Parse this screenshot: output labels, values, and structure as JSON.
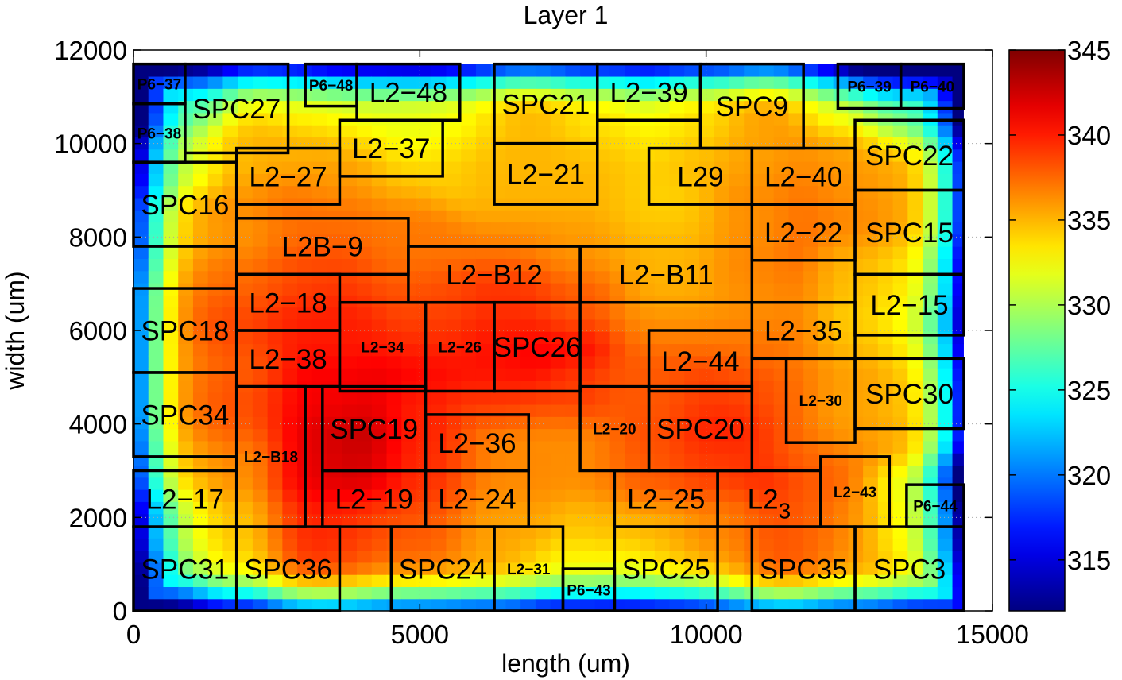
{
  "chart_data": {
    "type": "heatmap",
    "title": "Layer 1",
    "xlabel": "length (um)",
    "ylabel": "width (um)",
    "xlim": [
      0,
      15000
    ],
    "ylim": [
      0,
      12000
    ],
    "x_ticks": [
      {
        "value": 0,
        "label": "0"
      },
      {
        "value": 5000,
        "label": "5000"
      },
      {
        "value": 10000,
        "label": "10000"
      },
      {
        "value": 15000,
        "label": "15000"
      }
    ],
    "y_ticks": [
      {
        "value": 0,
        "label": "0"
      },
      {
        "value": 2000,
        "label": "2000"
      },
      {
        "value": 4000,
        "label": "4000"
      },
      {
        "value": 6000,
        "label": "6000"
      },
      {
        "value": 8000,
        "label": "8000"
      },
      {
        "value": 10000,
        "label": "10000"
      },
      {
        "value": 12000,
        "label": "12000"
      }
    ],
    "die_extent": {
      "x": [
        0,
        14500
      ],
      "y": [
        0,
        11700
      ]
    },
    "colorbar": {
      "range": [
        312,
        345
      ],
      "colormap": "jet",
      "ticks": [
        {
          "value": 315,
          "label": "315"
        },
        {
          "value": 320,
          "label": "320"
        },
        {
          "value": 325,
          "label": "325"
        },
        {
          "value": 330,
          "label": "330"
        },
        {
          "value": 335,
          "label": "335"
        },
        {
          "value": 340,
          "label": "340"
        },
        {
          "value": 345,
          "label": "345"
        }
      ]
    },
    "blocks": [
      {
        "name": "P6−37",
        "x0": 0,
        "y0": 10850,
        "x1": 900,
        "y1": 11700,
        "temp": 322,
        "small": true
      },
      {
        "name": "P6−38",
        "x0": 0,
        "y0": 9600,
        "x1": 900,
        "y1": 10850,
        "temp": 326,
        "small": true
      },
      {
        "name": "SPC27",
        "x0": 900,
        "y0": 9800,
        "x1": 2700,
        "y1": 11700,
        "temp": 333
      },
      {
        "name": "P6−48",
        "x0": 3000,
        "y0": 10800,
        "x1": 3900,
        "y1": 11700,
        "temp": 331,
        "small": true
      },
      {
        "name": "L2−48",
        "x0": 3900,
        "y0": 10500,
        "x1": 5700,
        "y1": 11700,
        "temp": 330
      },
      {
        "name": "SPC21",
        "x0": 6300,
        "y0": 10000,
        "x1": 8100,
        "y1": 11700,
        "temp": 335
      },
      {
        "name": "L2−39",
        "x0": 8100,
        "y0": 10500,
        "x1": 9900,
        "y1": 11700,
        "temp": 331
      },
      {
        "name": "SPC9",
        "x0": 9900,
        "y0": 9900,
        "x1": 11700,
        "y1": 11700,
        "temp": 336
      },
      {
        "name": "P6−39",
        "x0": 12300,
        "y0": 10750,
        "x1": 13400,
        "y1": 11700,
        "temp": 327,
        "small": true
      },
      {
        "name": "P6−40",
        "x0": 13400,
        "y0": 10750,
        "x1": 14500,
        "y1": 11700,
        "temp": 321,
        "small": true
      },
      {
        "name": "L2−37",
        "x0": 3600,
        "y0": 9300,
        "x1": 5400,
        "y1": 10500,
        "temp": 334
      },
      {
        "name": "L2−27",
        "x0": 1800,
        "y0": 8700,
        "x1": 3600,
        "y1": 9900,
        "temp": 338
      },
      {
        "name": "SPC16",
        "x0": 0,
        "y0": 7800,
        "x1": 1800,
        "y1": 9600,
        "temp": 334
      },
      {
        "name": "L2−21",
        "x0": 6300,
        "y0": 8700,
        "x1": 8100,
        "y1": 10000,
        "temp": 335
      },
      {
        "name": "L29",
        "x0": 9000,
        "y0": 8700,
        "x1": 10800,
        "y1": 9900,
        "temp": 334
      },
      {
        "name": "L2−40",
        "x0": 10800,
        "y0": 8700,
        "x1": 12600,
        "y1": 9900,
        "temp": 337
      },
      {
        "name": "SPC22",
        "x0": 12600,
        "y0": 9000,
        "x1": 14500,
        "y1": 10500,
        "temp": 335
      },
      {
        "name": "L2B−9",
        "x0": 1800,
        "y0": 7200,
        "x1": 4800,
        "y1": 8400,
        "temp": 337
      },
      {
        "name": "L2−22",
        "x0": 10800,
        "y0": 7500,
        "x1": 12600,
        "y1": 8700,
        "temp": 338
      },
      {
        "name": "SPC15",
        "x0": 12600,
        "y0": 7200,
        "x1": 14500,
        "y1": 9000,
        "temp": 335
      },
      {
        "name": "L2−B12",
        "x0": 4800,
        "y0": 6600,
        "x1": 7800,
        "y1": 7800,
        "temp": 337
      },
      {
        "name": "L2−B11",
        "x0": 7800,
        "y0": 6600,
        "x1": 10800,
        "y1": 7800,
        "temp": 335
      },
      {
        "name": "L2−18",
        "x0": 1800,
        "y0": 6000,
        "x1": 3600,
        "y1": 7200,
        "temp": 340
      },
      {
        "name": "L2−15",
        "x0": 12600,
        "y0": 5900,
        "x1": 14500,
        "y1": 7200,
        "temp": 331
      },
      {
        "name": "SPC18",
        "x0": 0,
        "y0": 5100,
        "x1": 1800,
        "y1": 6900,
        "temp": 336
      },
      {
        "name": "L2−34",
        "x0": 3600,
        "y0": 4700,
        "x1": 5100,
        "y1": 6600,
        "temp": 340,
        "small": true
      },
      {
        "name": "L2−26",
        "x0": 5100,
        "y0": 4700,
        "x1": 6300,
        "y1": 6600,
        "temp": 339,
        "small": true
      },
      {
        "name": "SPC26",
        "x0": 6300,
        "y0": 4700,
        "x1": 7800,
        "y1": 6600,
        "temp": 342
      },
      {
        "name": "L2−35",
        "x0": 10800,
        "y0": 5400,
        "x1": 12600,
        "y1": 6600,
        "temp": 337
      },
      {
        "name": "L2−38",
        "x0": 1800,
        "y0": 4800,
        "x1": 3600,
        "y1": 6000,
        "temp": 340
      },
      {
        "name": "L2−44",
        "x0": 9000,
        "y0": 4700,
        "x1": 10800,
        "y1": 6000,
        "temp": 337
      },
      {
        "name": "SPC34",
        "x0": 0,
        "y0": 3300,
        "x1": 1800,
        "y1": 5100,
        "temp": 336
      },
      {
        "name": "L2−B18",
        "x0": 1800,
        "y0": 1800,
        "x1": 3000,
        "y1": 4800,
        "temp": 340,
        "small": true
      },
      {
        "name": "SPC19",
        "x0": 3300,
        "y0": 3000,
        "x1": 5100,
        "y1": 4800,
        "temp": 344
      },
      {
        "name": "L2−36",
        "x0": 5100,
        "y0": 3000,
        "x1": 6900,
        "y1": 4200,
        "temp": 336
      },
      {
        "name": "L2−20",
        "x0": 7800,
        "y0": 3000,
        "x1": 9000,
        "y1": 4800,
        "temp": 336,
        "small": true
      },
      {
        "name": "SPC20",
        "x0": 9000,
        "y0": 3000,
        "x1": 10800,
        "y1": 4800,
        "temp": 341
      },
      {
        "name": "L2−30",
        "x0": 11400,
        "y0": 3600,
        "x1": 12600,
        "y1": 5400,
        "temp": 337,
        "small": true
      },
      {
        "name": "SPC30",
        "x0": 12600,
        "y0": 3900,
        "x1": 14500,
        "y1": 5400,
        "temp": 334
      },
      {
        "name": "L2−17",
        "x0": 0,
        "y0": 1800,
        "x1": 1800,
        "y1": 3000,
        "temp": 333
      },
      {
        "name": "L2−19",
        "x0": 3300,
        "y0": 1800,
        "x1": 5100,
        "y1": 3000,
        "temp": 341
      },
      {
        "name": "L2−24",
        "x0": 5100,
        "y0": 1800,
        "x1": 6900,
        "y1": 3000,
        "temp": 337
      },
      {
        "name": "L2−25",
        "x0": 8400,
        "y0": 1800,
        "x1": 10200,
        "y1": 3000,
        "temp": 337
      },
      {
        "name": "L2_3",
        "x0": 10200,
        "y0": 1800,
        "x1": 12000,
        "y1": 3000,
        "temp": 339
      },
      {
        "name": "L2−43",
        "x0": 12000,
        "y0": 1800,
        "x1": 13200,
        "y1": 3300,
        "temp": 337,
        "small": true
      },
      {
        "name": "P6−44",
        "x0": 13500,
        "y0": 1800,
        "x1": 14500,
        "y1": 2700,
        "temp": 327,
        "small": true
      },
      {
        "name": "SPC31",
        "x0": 0,
        "y0": 0,
        "x1": 1800,
        "y1": 1800,
        "temp": 327
      },
      {
        "name": "SPC36",
        "x0": 1800,
        "y0": 0,
        "x1": 3600,
        "y1": 1800,
        "temp": 338
      },
      {
        "name": "SPC24",
        "x0": 4500,
        "y0": 0,
        "x1": 6300,
        "y1": 1800,
        "temp": 336
      },
      {
        "name": "L2−31",
        "x0": 6300,
        "y0": 0,
        "x1": 7500,
        "y1": 1800,
        "temp": 334,
        "small": true
      },
      {
        "name": "P6−43",
        "x0": 7500,
        "y0": 0,
        "x1": 8400,
        "y1": 900,
        "temp": 331,
        "small": true
      },
      {
        "name": "SPC25",
        "x0": 8400,
        "y0": 0,
        "x1": 10200,
        "y1": 1800,
        "temp": 333
      },
      {
        "name": "SPC35",
        "x0": 10800,
        "y0": 0,
        "x1": 12600,
        "y1": 1800,
        "temp": 338
      },
      {
        "name": "SPC3",
        "x0": 12600,
        "y0": 0,
        "x1": 14500,
        "y1": 1800,
        "temp": 333
      }
    ]
  }
}
